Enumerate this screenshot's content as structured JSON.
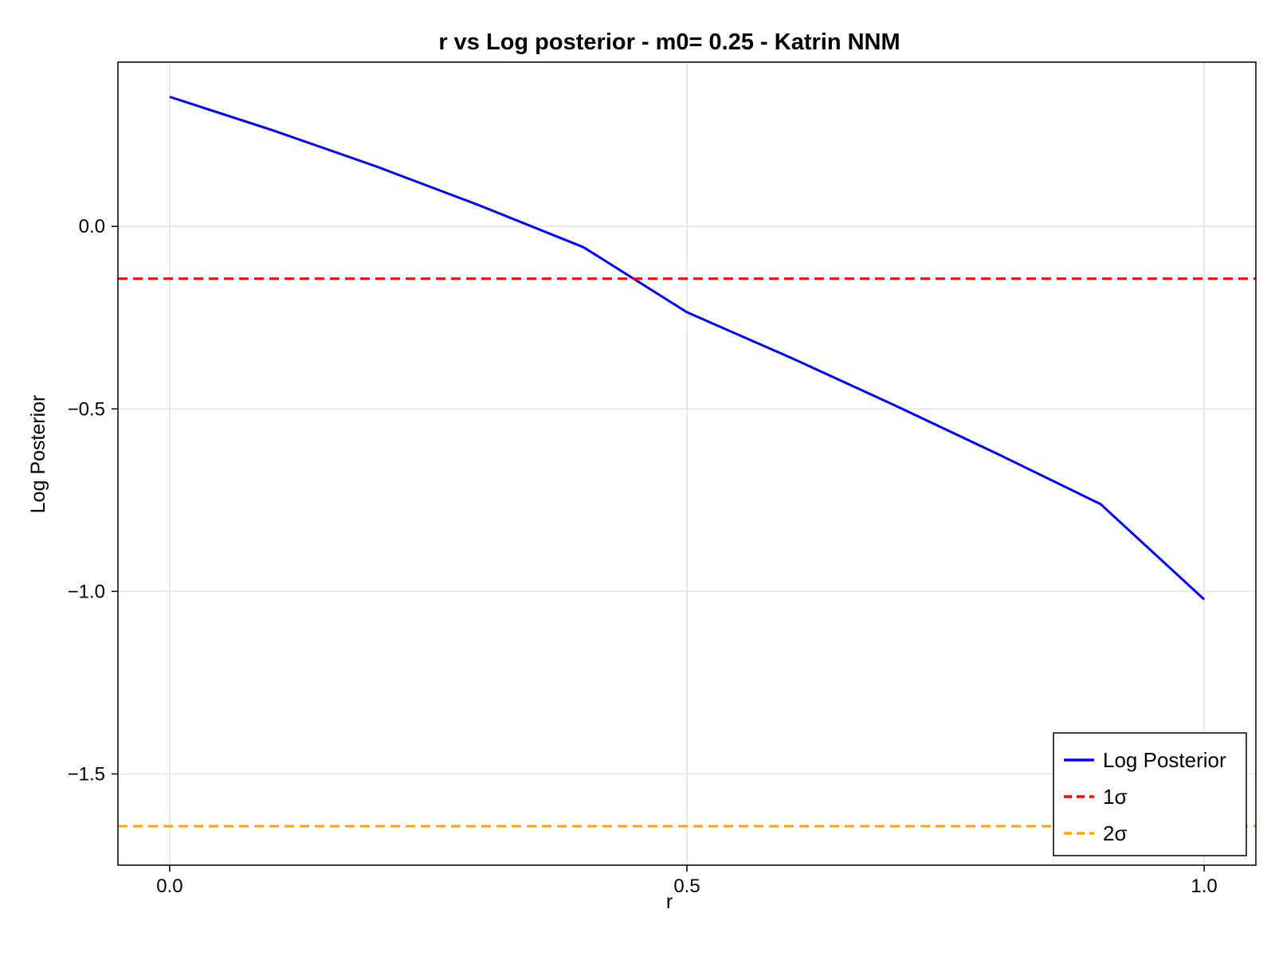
{
  "chart_data": {
    "type": "line",
    "title": "r vs Log posterior - m0= 0.25 - Katrin NNM",
    "xlabel": "r",
    "ylabel": "Log Posterior",
    "xlim": [
      -0.05,
      1.05
    ],
    "ylim": [
      -1.75,
      0.45
    ],
    "xticks": [
      0.0,
      0.5,
      1.0
    ],
    "xtick_labels": [
      "0.0",
      "0.5",
      "1.0"
    ],
    "yticks": [
      0.0,
      -0.5,
      -1.0,
      -1.5
    ],
    "ytick_labels": [
      "0.0",
      "−0.5",
      "−1.0",
      "−1.5"
    ],
    "grid": true,
    "legend_position": "bottom-right",
    "series": [
      {
        "name": "Log Posterior",
        "style": "solid",
        "color": "#0000ff",
        "x": [
          0.0,
          0.1,
          0.2,
          0.3,
          0.4,
          0.5,
          0.6,
          0.7,
          0.8,
          0.9,
          1.0
        ],
        "values": [
          0.355,
          0.263,
          0.164,
          0.057,
          -0.057,
          -0.235,
          -0.359,
          -0.489,
          -0.623,
          -0.761,
          -1.022
        ]
      },
      {
        "name": "1σ",
        "style": "dashed",
        "color": "#ff0000",
        "type": "hline",
        "y": -0.143
      },
      {
        "name": "2σ",
        "style": "dashed",
        "color": "#ffa500",
        "type": "hline",
        "y": -1.643
      }
    ]
  }
}
